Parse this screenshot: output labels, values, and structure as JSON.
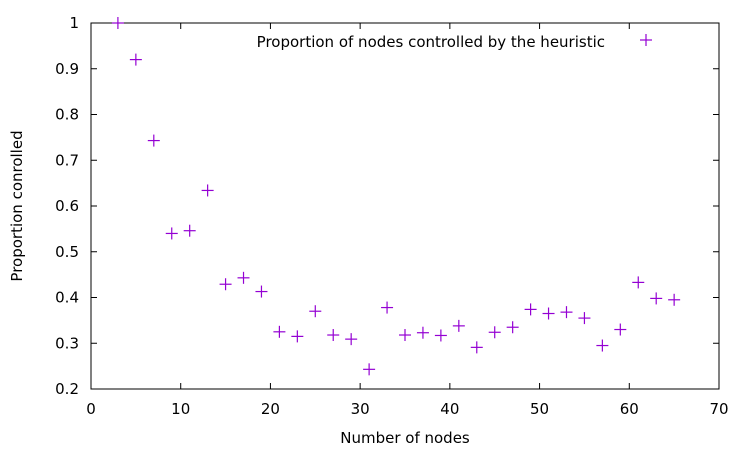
{
  "chart_data": {
    "type": "scatter",
    "title": "",
    "xlabel": "Number of nodes",
    "ylabel": "Proportion conrolled",
    "xlim": [
      0,
      70
    ],
    "ylim": [
      0.2,
      1.0
    ],
    "grid": false,
    "legend_position": "top-right",
    "x_ticks": [
      "0",
      "10",
      "20",
      "30",
      "40",
      "50",
      "60",
      "70"
    ],
    "y_ticks": [
      "0.2",
      "0.3",
      "0.4",
      "0.5",
      "0.6",
      "0.7",
      "0.8",
      "0.9",
      "1"
    ],
    "series": [
      {
        "name": "Proportion of nodes controlled by the heuristic",
        "color": "#9400d3",
        "marker": "plus",
        "points": [
          {
            "x": 3,
            "y": 1.0
          },
          {
            "x": 5,
            "y": 0.92
          },
          {
            "x": 7,
            "y": 0.743
          },
          {
            "x": 9,
            "y": 0.54
          },
          {
            "x": 11,
            "y": 0.546
          },
          {
            "x": 13,
            "y": 0.634
          },
          {
            "x": 15,
            "y": 0.429
          },
          {
            "x": 17,
            "y": 0.443
          },
          {
            "x": 19,
            "y": 0.413
          },
          {
            "x": 21,
            "y": 0.325
          },
          {
            "x": 23,
            "y": 0.315
          },
          {
            "x": 25,
            "y": 0.37
          },
          {
            "x": 27,
            "y": 0.318
          },
          {
            "x": 29,
            "y": 0.309
          },
          {
            "x": 31,
            "y": 0.243
          },
          {
            "x": 33,
            "y": 0.378
          },
          {
            "x": 35,
            "y": 0.318
          },
          {
            "x": 37,
            "y": 0.323
          },
          {
            "x": 39,
            "y": 0.317
          },
          {
            "x": 41,
            "y": 0.338
          },
          {
            "x": 43,
            "y": 0.291
          },
          {
            "x": 45,
            "y": 0.324
          },
          {
            "x": 47,
            "y": 0.335
          },
          {
            "x": 49,
            "y": 0.374
          },
          {
            "x": 51,
            "y": 0.365
          },
          {
            "x": 53,
            "y": 0.368
          },
          {
            "x": 55,
            "y": 0.355
          },
          {
            "x": 57,
            "y": 0.295
          },
          {
            "x": 59,
            "y": 0.33
          },
          {
            "x": 61,
            "y": 0.433
          },
          {
            "x": 63,
            "y": 0.398
          },
          {
            "x": 65,
            "y": 0.395
          }
        ]
      }
    ]
  }
}
